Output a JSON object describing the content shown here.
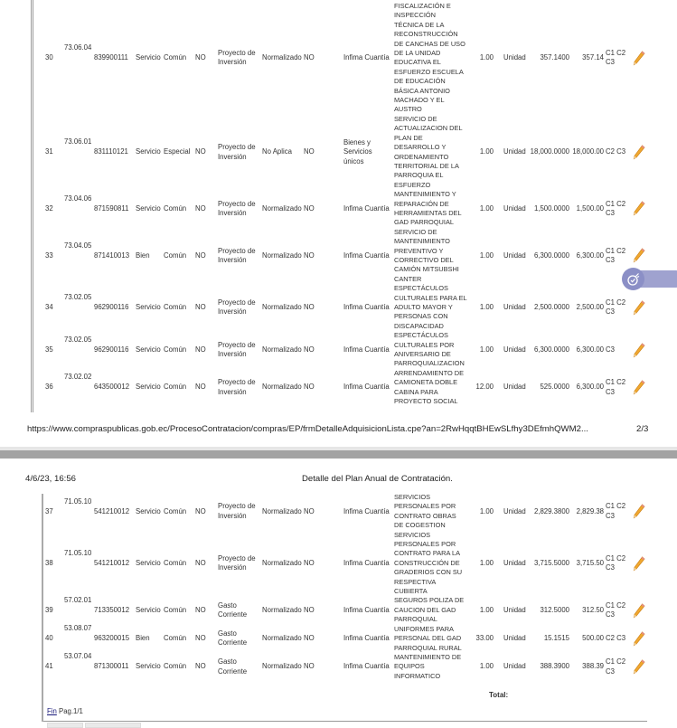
{
  "page1": {
    "rows": [
      {
        "num": "30",
        "partida": "73.06.04",
        "cpc": "839900111",
        "tipo_compra": "Servicio",
        "regimen": "Común",
        "bid": "NO",
        "presupuesto": "Proyecto de Inversión",
        "procedimiento": "Normalizado",
        "catalogo": "NO",
        "tipo_proc": "Infima Cuantía",
        "descripcion": "FISCALIZACIÓN E\nINSPECCIÓN\nTÉCNICA DE LA\nRECONSTRUCCIÓN\nDE CANCHAS DE USO\nDE LA UNIDAD\nEDUCATIVA EL\nESFUERZO ESCUELA\nDE EDUCACIÓN\nBÁSICA ANTONIO\nMACHADO Y EL\nAUSTRO",
        "cantidad": "1.00",
        "unidad": "Unidad",
        "costo_unitario": "357.1400",
        "total": "357.14",
        "periodo": "C1 C2 C3"
      },
      {
        "num": "31",
        "partida": "73.06.01",
        "cpc": "831110121",
        "tipo_compra": "Servicio",
        "regimen": "Especial",
        "bid": "NO",
        "presupuesto": "Proyecto de Inversión",
        "procedimiento": "No Aplica",
        "catalogo": "NO",
        "tipo_proc": "Bienes y\nServicios\núnicos",
        "descripcion": "SERVICIO DE\nACTUALIZACION DEL\nPLAN DE\nDESARROLLO Y\nORDENAMIENTO\nTERRITORIAL DE LA\nPARROQUIA EL\nESFUERZO",
        "cantidad": "1.00",
        "unidad": "Unidad",
        "costo_unitario": "18,000.0000",
        "total": "18,000.00",
        "periodo": "C2 C3"
      },
      {
        "num": "32",
        "partida": "73.04.06",
        "cpc": "871590811",
        "tipo_compra": "Servicio",
        "regimen": "Común",
        "bid": "NO",
        "presupuesto": "Proyecto de Inversión",
        "procedimiento": "Normalizado",
        "catalogo": "NO",
        "tipo_proc": "Infima Cuantía",
        "descripcion": "MANTENIMIENTO Y\nREPARACIÓN DE\nHERRAMIENTAS DEL\nGAD PARROQUIAL",
        "cantidad": "1.00",
        "unidad": "Unidad",
        "costo_unitario": "1,500.0000",
        "total": "1,500.00",
        "periodo": "C1 C2 C3"
      },
      {
        "num": "33",
        "partida": "73.04.05",
        "cpc": "871410013",
        "tipo_compra": "Bien",
        "regimen": "Común",
        "bid": "NO",
        "presupuesto": "Proyecto de Inversión",
        "procedimiento": "Normalizado",
        "catalogo": "NO",
        "tipo_proc": "Infima Cuantía",
        "descripcion": "SERVICIO DE\nMANTENIMIENTO\nPREVENTIVO Y\nCORRECTIVO DEL\nCAMIÓN MITSUBSHI\nCANTER",
        "cantidad": "1.00",
        "unidad": "Unidad",
        "costo_unitario": "6,300.0000",
        "total": "6,300.00",
        "periodo": "C1 C2 C3"
      },
      {
        "num": "34",
        "partida": "73.02.05",
        "cpc": "962900116",
        "tipo_compra": "Servicio",
        "regimen": "Común",
        "bid": "NO",
        "presupuesto": "Proyecto de Inversión",
        "procedimiento": "Normalizado",
        "catalogo": "NO",
        "tipo_proc": "Infima Cuantía",
        "descripcion": "ESPECTÁCULOS\nCULTURALES PARA EL\nADULTO MAYOR Y\nPERSONAS CON\nDISCAPACIDAD",
        "cantidad": "1.00",
        "unidad": "Unidad",
        "costo_unitario": "2,500.0000",
        "total": "2,500.00",
        "periodo": "C1 C2 C3"
      },
      {
        "num": "35",
        "partida": "73.02.05",
        "cpc": "962900116",
        "tipo_compra": "Servicio",
        "regimen": "Común",
        "bid": "NO",
        "presupuesto": "Proyecto de Inversión",
        "procedimiento": "Normalizado",
        "catalogo": "NO",
        "tipo_proc": "Infima Cuantía",
        "descripcion": "ESPECTÁCULOS\nCULTURALES POR\nANIVERSARIO DE\nPARROQUIALIZACION",
        "cantidad": "1.00",
        "unidad": "Unidad",
        "costo_unitario": "6,300.0000",
        "total": "6,300.00",
        "periodo": "C3"
      },
      {
        "num": "36",
        "partida": "73.02.02",
        "cpc": "643500012",
        "tipo_compra": "Servicio",
        "regimen": "Común",
        "bid": "NO",
        "presupuesto": "Proyecto de Inversión",
        "procedimiento": "Normalizado",
        "catalogo": "NO",
        "tipo_proc": "Infima Cuantía",
        "descripcion": "ARRENDAMIENTO DE\nCAMIONETA DOBLE\nCABINA PARA\nPROYECTO SOCIAL",
        "cantidad": "12.00",
        "unidad": "Unidad",
        "costo_unitario": "525.0000",
        "total": "6,300.00",
        "periodo": "C1 C2 C3"
      }
    ],
    "footer_url": "https://www.compraspublicas.gob.ec/ProcesoContratacion/compras/EP/frmDetalleAdquisicionLista.cpe?an=2RwHqqtBHEwSLfhy3DEfmhQWM2...",
    "page_number": "2/3"
  },
  "page2": {
    "header_date": "4/6/23, 16:56",
    "header_title": "Detalle del Plan Anual de Contratación.",
    "rows": [
      {
        "num": "37",
        "partida": "71.05.10",
        "cpc": "541210012",
        "tipo_compra": "Servicio",
        "regimen": "Común",
        "bid": "NO",
        "presupuesto": "Proyecto de Inversión",
        "procedimiento": "Normalizado",
        "catalogo": "NO",
        "tipo_proc": "Infima Cuantía",
        "descripcion": "SERVICIOS\nPERSONALES POR\nCONTRATO OBRAS\nDE COGESTION",
        "cantidad": "1.00",
        "unidad": "Unidad",
        "costo_unitario": "2,829.3800",
        "total": "2,829.38",
        "periodo": "C1 C2 C3"
      },
      {
        "num": "38",
        "partida": "71.05.10",
        "cpc": "541210012",
        "tipo_compra": "Servicio",
        "regimen": "Común",
        "bid": "NO",
        "presupuesto": "Proyecto de Inversión",
        "procedimiento": "Normalizado",
        "catalogo": "NO",
        "tipo_proc": "Infima Cuantía",
        "descripcion": "SERVICIOS\nPERSONALES POR\nCONTRATO PARA LA\nCONSTRUCCIÓN DE\nGRADERIOS CON SU\nRESPECTIVA\nCUBIERTA",
        "cantidad": "1.00",
        "unidad": "Unidad",
        "costo_unitario": "3,715.5000",
        "total": "3,715.50",
        "periodo": "C1 C2 C3"
      },
      {
        "num": "39",
        "partida": "57.02.01",
        "cpc": "713350012",
        "tipo_compra": "Servicio",
        "regimen": "Común",
        "bid": "NO",
        "presupuesto": "Gasto Corriente",
        "procedimiento": "Normalizado",
        "catalogo": "NO",
        "tipo_proc": "Infima Cuantía",
        "descripcion": "SEGUROS POLIZA DE\nCAUCION DEL GAD\nPARROQUIAL",
        "cantidad": "1.00",
        "unidad": "Unidad",
        "costo_unitario": "312.5000",
        "total": "312.50",
        "periodo": "C1 C2 C3"
      },
      {
        "num": "40",
        "partida": "53.08.07",
        "cpc": "963200015",
        "tipo_compra": "Bien",
        "regimen": "Común",
        "bid": "NO",
        "presupuesto": "Gasto Corriente",
        "procedimiento": "Normalizado",
        "catalogo": "NO",
        "tipo_proc": "Infima Cuantía",
        "descripcion": "UNIFORMES PARA\nPERSONAL DEL GAD\nPARROQUIAL RURAL",
        "cantidad": "33.00",
        "unidad": "Unidad",
        "costo_unitario": "15.1515",
        "total": "500.00",
        "periodo": "C2 C3"
      },
      {
        "num": "41",
        "partida": "53.07.04",
        "cpc": "871300011",
        "tipo_compra": "Servicio",
        "regimen": "Común",
        "bid": "NO",
        "presupuesto": "Gasto Corriente",
        "procedimiento": "Normalizado",
        "catalogo": "NO",
        "tipo_proc": "Infima Cuantía",
        "descripcion": "MANTENIMIENTO DE\nEQUIPOS\nINFORMATICO",
        "cantidad": "1.00",
        "unidad": "Unidad",
        "costo_unitario": "388.3900",
        "total": "388.39",
        "periodo": "C1 C2 C3"
      }
    ],
    "total_label": "Total:",
    "fin_link": "Fin",
    "page_info": "Pag.1/1"
  },
  "icons": {
    "edit": "pencil-icon",
    "widget": "timer-rocket-icon"
  },
  "colors": {
    "pencil": "#f0a830",
    "widget": "#8b8fc6",
    "separator": "#a3a3a3"
  }
}
